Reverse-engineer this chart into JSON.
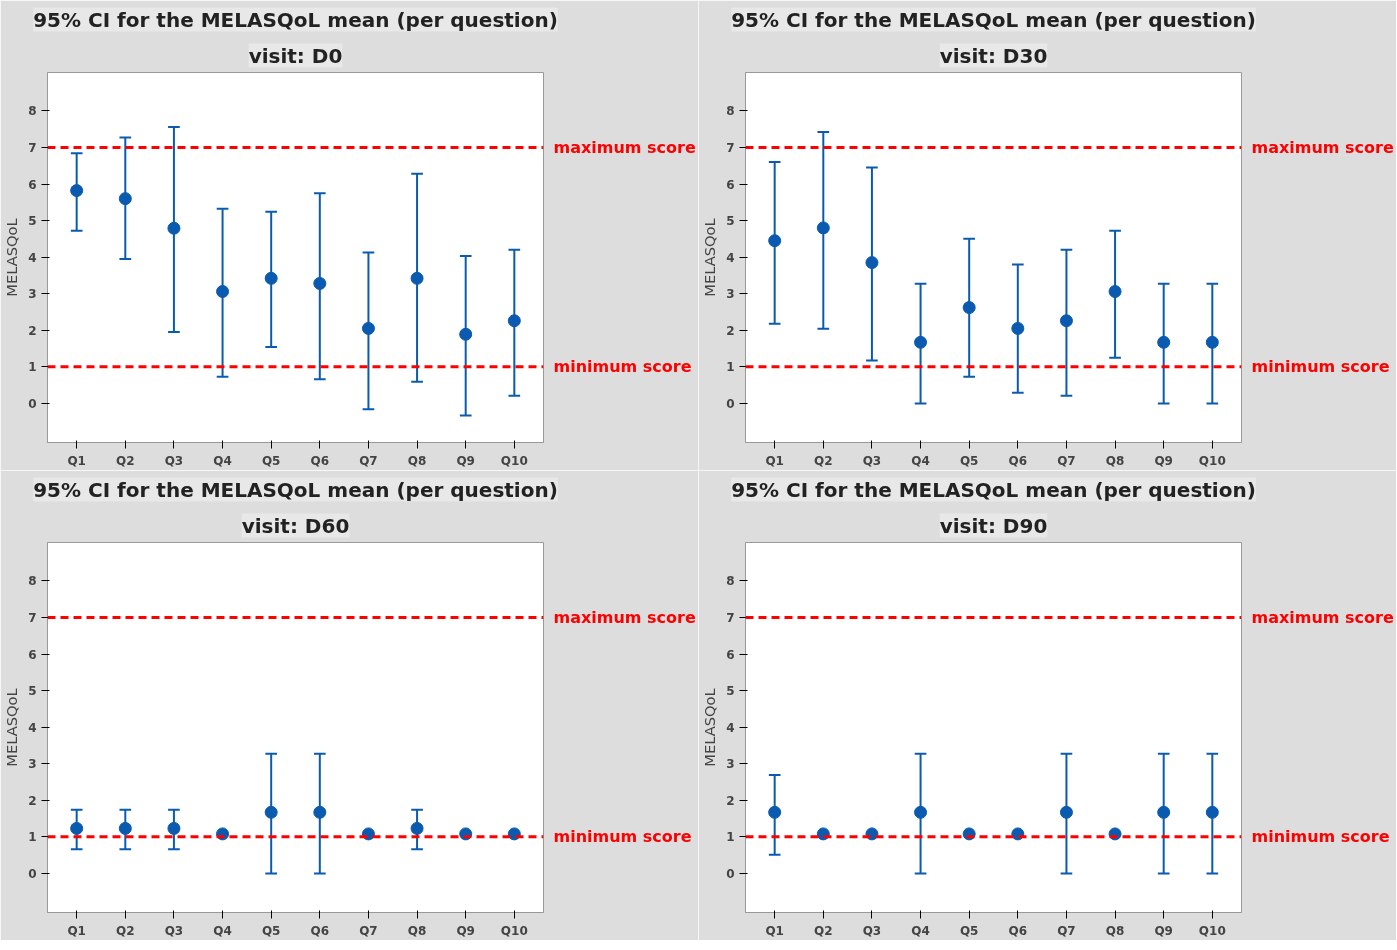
{
  "chart_data": [
    {
      "type": "scatter",
      "title": "95% CI for the MELASQoL mean (per question)",
      "subtitle": "visit: D0",
      "ylabel": "MELASQoL",
      "categories": [
        "Q1",
        "Q2",
        "Q3",
        "Q4",
        "Q5",
        "Q6",
        "Q7",
        "Q8",
        "Q9",
        "Q10"
      ],
      "color": "#0a5bb0",
      "marker": "circle",
      "grid": false,
      "values": [
        5.82,
        5.6,
        4.79,
        3.06,
        3.42,
        3.28,
        2.05,
        3.42,
        1.89,
        2.26
      ],
      "errors": [
        [
          4.72,
          6.84
        ],
        [
          3.95,
          7.27
        ],
        [
          1.95,
          7.56
        ],
        [
          0.73,
          5.32
        ],
        [
          1.54,
          5.24
        ],
        [
          0.66,
          5.75
        ],
        [
          -0.16,
          4.13
        ],
        [
          0.59,
          6.28
        ],
        [
          -0.33,
          4.03
        ],
        [
          0.21,
          4.2
        ]
      ],
      "ylim": [
        -1.07,
        9.05
      ],
      "yticks": [
        0,
        1,
        2,
        3,
        4,
        5,
        6,
        7,
        8
      ],
      "ref_lines": [
        {
          "axis": "y",
          "value": 7,
          "label": "maximum score",
          "color": "#ff0000",
          "line_style": "dashed"
        },
        {
          "axis": "y",
          "value": 1,
          "label": "minimum score",
          "color": "#ff0000",
          "line_style": "dashed"
        }
      ]
    },
    {
      "type": "scatter",
      "title": "95% CI for the MELASQoL mean (per question)",
      "subtitle": "visit: D30",
      "ylabel": "MELASQoL",
      "categories": [
        "Q1",
        "Q2",
        "Q3",
        "Q4",
        "Q5",
        "Q6",
        "Q7",
        "Q8",
        "Q9",
        "Q10"
      ],
      "color": "#0a5bb0",
      "marker": "circle",
      "grid": false,
      "values": [
        4.45,
        4.8,
        3.85,
        1.67,
        2.62,
        2.05,
        2.26,
        3.06,
        1.67,
        1.67
      ],
      "errors": [
        [
          2.18,
          6.6
        ],
        [
          2.04,
          7.42
        ],
        [
          1.17,
          6.45
        ],
        [
          0,
          3.27
        ],
        [
          0.73,
          4.5
        ],
        [
          0.29,
          3.8
        ],
        [
          0.21,
          4.2
        ],
        [
          1.25,
          4.72
        ],
        [
          0,
          3.27
        ],
        [
          0,
          3.27
        ]
      ],
      "ylim": [
        -1.07,
        9.05
      ],
      "yticks": [
        0,
        1,
        2,
        3,
        4,
        5,
        6,
        7,
        8
      ],
      "ref_lines": [
        {
          "axis": "y",
          "value": 7,
          "label": "maximum score",
          "color": "#ff0000",
          "line_style": "dashed"
        },
        {
          "axis": "y",
          "value": 1,
          "label": "minimum score",
          "color": "#ff0000",
          "line_style": "dashed"
        }
      ]
    },
    {
      "type": "scatter",
      "title": "95% CI for the MELASQoL mean (per question)",
      "subtitle": "visit: D60",
      "ylabel": "MELASQoL",
      "categories": [
        "Q1",
        "Q2",
        "Q3",
        "Q4",
        "Q5",
        "Q6",
        "Q7",
        "Q8",
        "Q9",
        "Q10"
      ],
      "color": "#0a5bb0",
      "marker": "circle",
      "grid": false,
      "values": [
        1.23,
        1.23,
        1.23,
        1.08,
        1.67,
        1.67,
        1.08,
        1.23,
        1.08,
        1.08
      ],
      "errors": [
        [
          0.66,
          1.74
        ],
        [
          0.66,
          1.74
        ],
        [
          0.66,
          1.74
        ],
        null,
        [
          0,
          3.27
        ],
        [
          0,
          3.27
        ],
        null,
        [
          0.66,
          1.74
        ],
        null,
        null
      ],
      "ylim": [
        -1.07,
        9.05
      ],
      "yticks": [
        0,
        1,
        2,
        3,
        4,
        5,
        6,
        7,
        8
      ],
      "ref_lines": [
        {
          "axis": "y",
          "value": 7,
          "label": "maximum score",
          "color": "#ff0000",
          "line_style": "dashed"
        },
        {
          "axis": "y",
          "value": 1,
          "label": "minimum score",
          "color": "#ff0000",
          "line_style": "dashed"
        }
      ]
    },
    {
      "type": "scatter",
      "title": "95% CI for the MELASQoL mean (per question)",
      "subtitle": "visit: D90",
      "ylabel": "MELASQoL",
      "categories": [
        "Q1",
        "Q2",
        "Q3",
        "Q4",
        "Q5",
        "Q6",
        "Q7",
        "Q8",
        "Q9",
        "Q10"
      ],
      "color": "#0a5bb0",
      "marker": "circle",
      "grid": false,
      "values": [
        1.67,
        1.08,
        1.08,
        1.67,
        1.08,
        1.08,
        1.67,
        1.08,
        1.67,
        1.67
      ],
      "errors": [
        [
          0.51,
          2.69
        ],
        null,
        null,
        [
          0,
          3.27
        ],
        null,
        null,
        [
          0,
          3.27
        ],
        null,
        [
          0,
          3.27
        ],
        [
          0,
          3.27
        ]
      ],
      "ylim": [
        -1.07,
        9.05
      ],
      "yticks": [
        0,
        1,
        2,
        3,
        4,
        5,
        6,
        7,
        8
      ],
      "ref_lines": [
        {
          "axis": "y",
          "value": 7,
          "label": "maximum score",
          "color": "#ff0000",
          "line_style": "dashed"
        },
        {
          "axis": "y",
          "value": 1,
          "label": "minimum score",
          "color": "#ff0000",
          "line_style": "dashed"
        }
      ]
    }
  ]
}
